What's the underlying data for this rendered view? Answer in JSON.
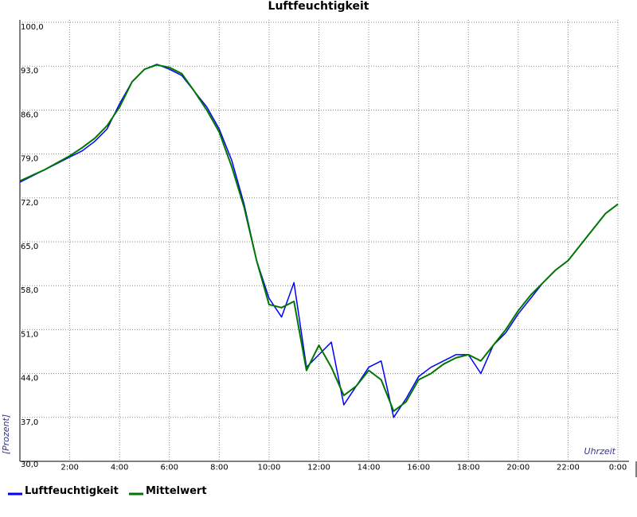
{
  "chart_data": {
    "type": "line",
    "title": "Luftfeuchtigkeit",
    "ylabel": "[Prozent]",
    "xlabel": "Uhrzeit",
    "x": [
      0,
      0.5,
      1,
      1.5,
      2,
      2.5,
      3,
      3.5,
      4,
      4.5,
      5,
      5.5,
      6,
      6.5,
      7,
      7.5,
      8,
      8.5,
      9,
      9.5,
      10,
      10.5,
      11,
      11.5,
      12,
      12.5,
      13,
      13.5,
      14,
      14.5,
      15,
      15.5,
      16,
      16.5,
      17,
      17.5,
      18,
      18.5,
      19,
      19.5,
      20,
      20.5,
      21,
      21.5,
      22,
      22.5,
      23,
      23.5,
      24
    ],
    "series": [
      {
        "name": "Luftfeuchtigkeit",
        "color": "#0000ff",
        "values": [
          74.5,
          75.5,
          76.5,
          77.5,
          78.5,
          79.5,
          81,
          83,
          87,
          90.5,
          92.5,
          93.3,
          92.5,
          91.5,
          89,
          86.5,
          83,
          78,
          71,
          62,
          56,
          53,
          58.5,
          45,
          47,
          49,
          39,
          42,
          45,
          46,
          37,
          40,
          43.5,
          45,
          46,
          47,
          47,
          44,
          48.5,
          50.5,
          53.5,
          56,
          58.5,
          60.5,
          62,
          64.5,
          67,
          69.5,
          71
        ]
      },
      {
        "name": "Mittelwert",
        "color": "#007700",
        "values": [
          74.7,
          75.6,
          76.5,
          77.6,
          78.7,
          80,
          81.5,
          83.5,
          86.5,
          90.5,
          92.5,
          93.2,
          92.8,
          91.8,
          89,
          86,
          82.5,
          77,
          70.5,
          62,
          55,
          54.5,
          55.5,
          44.5,
          48.5,
          45,
          40.5,
          42,
          44.5,
          43,
          38,
          39.5,
          43,
          44,
          45.5,
          46.5,
          47,
          46,
          48.5,
          51,
          54,
          56.5,
          58.5,
          60.5,
          62,
          64.5,
          67,
          69.5,
          71
        ]
      }
    ],
    "xlim": [
      0,
      24
    ],
    "xticks": [
      {
        "value": 2,
        "label": "2:00"
      },
      {
        "value": 4,
        "label": "4:00"
      },
      {
        "value": 6,
        "label": "6:00"
      },
      {
        "value": 8,
        "label": "8:00"
      },
      {
        "value": 10,
        "label": "10:00"
      },
      {
        "value": 12,
        "label": "12:00"
      },
      {
        "value": 14,
        "label": "14:00"
      },
      {
        "value": 16,
        "label": "16:00"
      },
      {
        "value": 18,
        "label": "18:00"
      },
      {
        "value": 20,
        "label": "20:00"
      },
      {
        "value": 22,
        "label": "22:00"
      },
      {
        "value": 24,
        "label": "0:00"
      }
    ],
    "ylim": [
      30,
      100
    ],
    "yticks": [
      {
        "value": 30,
        "label": "30,0"
      },
      {
        "value": 37,
        "label": "37,0"
      },
      {
        "value": 44,
        "label": "44,0"
      },
      {
        "value": 51,
        "label": "51,0"
      },
      {
        "value": 58,
        "label": "58,0"
      },
      {
        "value": 65,
        "label": "65,0"
      },
      {
        "value": 72,
        "label": "72,0"
      },
      {
        "value": 79,
        "label": "79,0"
      },
      {
        "value": 86,
        "label": "86,0"
      },
      {
        "value": 93,
        "label": "93,0"
      },
      {
        "value": 100,
        "label": "100,0"
      }
    ],
    "grid": true
  }
}
